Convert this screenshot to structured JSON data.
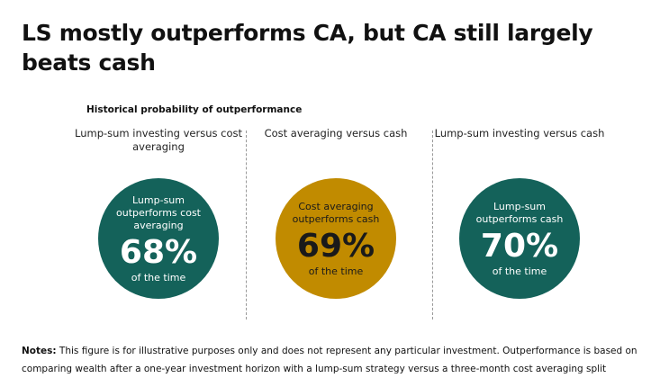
{
  "title": "LS mostly outperforms CA, but CA still largely beats cash",
  "subtitle": "Historical probability of outperformance",
  "columns": [
    {
      "heading": "Lump-sum investing versus cost averaging",
      "label": "Lump-sum outperforms cost averaging",
      "percent": "68%",
      "footer": "of the time",
      "color": "#14625a"
    },
    {
      "heading": "Cost averaging versus cash",
      "label": "Cost averaging outperforms cash",
      "percent": "69%",
      "footer": "of the time",
      "color": "#c18b00"
    },
    {
      "heading": "Lump-sum investing versus cash",
      "label": "Lump-sum outperforms cash",
      "percent": "70%",
      "footer": "of the time",
      "color": "#14625a"
    }
  ],
  "notes": {
    "label": "Notes:",
    "text": " This figure is for illustrative purposes only and does not represent any particular investment. Outperformance is based on comparing wealth after a one-year investment horizon with a lump-sum strategy versus a three-month cost averaging split"
  }
}
